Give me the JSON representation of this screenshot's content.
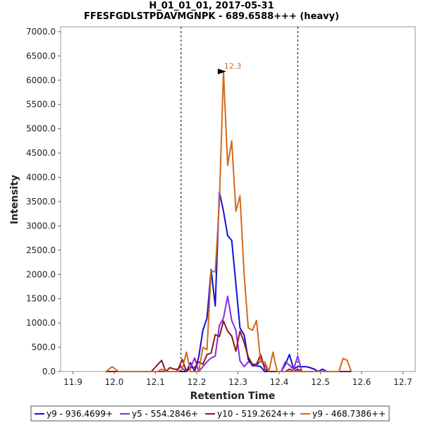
{
  "chart_data": {
    "type": "line",
    "title": "H_01_01_01, 2017-05-31",
    "subtitle": "FFESFGDLSTPDAVMGNPK - 689.6588+++ (heavy)",
    "xlabel": "Retention Time",
    "ylabel": "Intensity",
    "xlim": [
      11.87,
      12.73
    ],
    "ylim": [
      0,
      7100
    ],
    "xticks": [
      "11.9",
      "12.0",
      "12.1",
      "12.2",
      "12.3",
      "12.4",
      "12.5",
      "12.6",
      "12.7"
    ],
    "yticks": [
      "0.0",
      "500.0",
      "1000.0",
      "1500.0",
      "2000.0",
      "2500.0",
      "3000.0",
      "3500.0",
      "4000.0",
      "4500.0",
      "5000.0",
      "5500.0",
      "6000.0",
      "6500.0",
      "7000.0"
    ],
    "boundaries": [
      12.162,
      12.445
    ],
    "peak_annotation": {
      "label": "12.3",
      "x": 12.275,
      "y": 6180
    },
    "grid": false,
    "legend_position": "bottom",
    "series": [
      {
        "name": "y9 - 936.4699+",
        "color": "#1010d8",
        "x": [
          11.98,
          12.0,
          12.02,
          12.04,
          12.06,
          12.08,
          12.09,
          12.11,
          12.13,
          12.15,
          12.16,
          12.175,
          12.185,
          12.195,
          12.205,
          12.215,
          12.225,
          12.235,
          12.245,
          12.255,
          12.265,
          12.275,
          12.285,
          12.295,
          12.305,
          12.315,
          12.325,
          12.335,
          12.345,
          12.355,
          12.365,
          12.375,
          12.385,
          12.395,
          12.405,
          12.415,
          12.425,
          12.435,
          12.445,
          12.455,
          12.465,
          12.475,
          12.485,
          12.495,
          12.505,
          12.515,
          12.525,
          12.535,
          12.545,
          12.555,
          12.565,
          12.575
        ],
        "y": [
          0,
          0,
          0,
          0,
          0,
          0,
          0,
          0,
          0,
          0,
          0,
          0,
          180,
          0,
          300,
          850,
          1100,
          2100,
          1350,
          3700,
          3300,
          2800,
          2700,
          1800,
          900,
          750,
          250,
          120,
          120,
          100,
          0,
          0,
          0,
          0,
          0,
          150,
          350,
          50,
          100,
          100,
          100,
          80,
          50,
          0,
          50,
          0,
          0,
          0,
          0,
          0,
          0,
          0
        ]
      },
      {
        "name": "y5 - 554.2846+",
        "color": "#8a2be2",
        "x": [
          11.98,
          12.0,
          12.05,
          12.1,
          12.13,
          12.15,
          12.16,
          12.175,
          12.185,
          12.195,
          12.205,
          12.215,
          12.225,
          12.235,
          12.245,
          12.255,
          12.265,
          12.275,
          12.285,
          12.295,
          12.305,
          12.315,
          12.325,
          12.335,
          12.345,
          12.355,
          12.365,
          12.375,
          12.385,
          12.395,
          12.405,
          12.415,
          12.425,
          12.435,
          12.445,
          12.455,
          12.465,
          12.475,
          12.485,
          12.495,
          12.51,
          12.53,
          12.55,
          12.57
        ],
        "y": [
          0,
          0,
          0,
          0,
          0,
          0,
          100,
          0,
          80,
          280,
          0,
          100,
          200,
          280,
          320,
          950,
          1100,
          1550,
          1050,
          850,
          220,
          100,
          200,
          150,
          130,
          220,
          130,
          0,
          0,
          0,
          0,
          200,
          130,
          40,
          320,
          0,
          0,
          0,
          0,
          0,
          0,
          0,
          0,
          0
        ]
      },
      {
        "name": "y10 - 519.2624++",
        "color": "#8b1a1a",
        "x": [
          11.98,
          12.0,
          12.05,
          12.09,
          12.105,
          12.115,
          12.125,
          12.135,
          12.145,
          12.155,
          12.165,
          12.175,
          12.185,
          12.195,
          12.205,
          12.215,
          12.225,
          12.235,
          12.245,
          12.255,
          12.265,
          12.275,
          12.285,
          12.295,
          12.305,
          12.315,
          12.325,
          12.335,
          12.345,
          12.355,
          12.365,
          12.375,
          12.385,
          12.395,
          12.405,
          12.415,
          12.425,
          12.435,
          12.445,
          12.455,
          12.465,
          12.475,
          12.485,
          12.495,
          12.51,
          12.53,
          12.55,
          12.57
        ],
        "y": [
          0,
          0,
          0,
          0,
          140,
          230,
          0,
          80,
          50,
          50,
          250,
          0,
          80,
          80,
          200,
          150,
          350,
          380,
          760,
          720,
          1040,
          830,
          730,
          420,
          830,
          600,
          300,
          150,
          150,
          350,
          50,
          0,
          0,
          0,
          0,
          0,
          50,
          0,
          50,
          0,
          0,
          0,
          0,
          0,
          0,
          0,
          0,
          0
        ]
      },
      {
        "name": "y9 - 468.7386++",
        "color": "#d2691e",
        "x": [
          11.98,
          11.995,
          12.01,
          12.04,
          12.07,
          12.09,
          12.105,
          12.115,
          12.125,
          12.135,
          12.145,
          12.155,
          12.165,
          12.175,
          12.185,
          12.195,
          12.205,
          12.215,
          12.225,
          12.235,
          12.245,
          12.255,
          12.265,
          12.275,
          12.285,
          12.295,
          12.305,
          12.315,
          12.325,
          12.335,
          12.345,
          12.355,
          12.365,
          12.375,
          12.385,
          12.395,
          12.405,
          12.415,
          12.425,
          12.435,
          12.445,
          12.455,
          12.465,
          12.475,
          12.485,
          12.495,
          12.505,
          12.515,
          12.525,
          12.535,
          12.545,
          12.555,
          12.565,
          12.575
        ],
        "y": [
          0,
          100,
          0,
          0,
          0,
          0,
          0,
          50,
          0,
          0,
          0,
          0,
          50,
          400,
          0,
          0,
          0,
          500,
          450,
          2070,
          2050,
          3500,
          6180,
          4250,
          4750,
          3300,
          3620,
          2000,
          900,
          850,
          1050,
          200,
          200,
          0,
          400,
          0,
          0,
          0,
          0,
          0,
          0,
          0,
          0,
          0,
          0,
          0,
          0,
          0,
          0,
          0,
          0,
          270,
          230,
          0
        ]
      }
    ]
  }
}
